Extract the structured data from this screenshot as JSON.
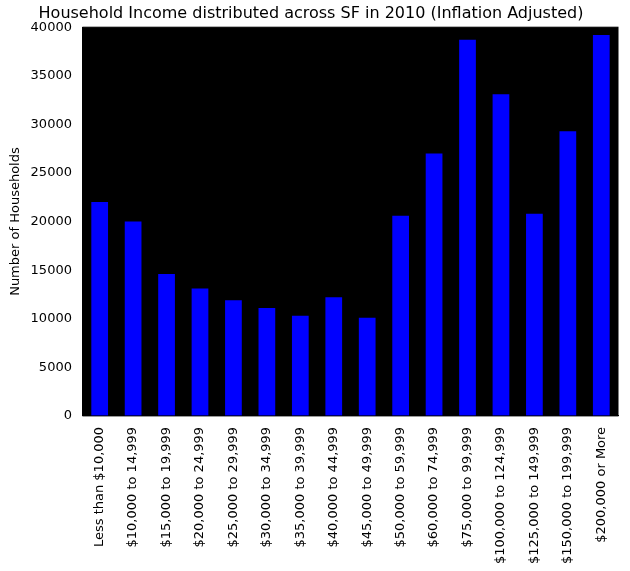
{
  "chart_data": {
    "type": "bar",
    "title": "Household Income distributed across SF in 2010 (Inflation Adjusted)",
    "y_label": "Number of Households",
    "categories": [
      "Less than $10,000",
      "$10,000 to 14,999",
      "$15,000 to 19,999",
      "$20,000 to 24,999",
      "$25,000 to 29,999",
      "$30,000 to 34,999",
      "$35,000 to 39,999",
      "$40,000 to 44,999",
      "$45,000 to 49,999",
      "$50,000 to 59,999",
      "$60,000 to 74,999",
      "$75,000 to 99,999",
      "$100,000 to 124,999",
      "$125,000 to 149,999",
      "$150,000 to 199,999",
      "$200,000 or More"
    ],
    "values": [
      22000,
      20000,
      14600,
      13100,
      11900,
      11100,
      10300,
      12200,
      10100,
      20600,
      27000,
      38700,
      33100,
      20800,
      29300,
      39200
    ],
    "color": "#0000ff",
    "ylim": [
      0,
      40000
    ],
    "yticks": [
      0,
      5000,
      10000,
      15000,
      20000,
      25000,
      30000,
      35000,
      40000
    ],
    "grid": false
  }
}
